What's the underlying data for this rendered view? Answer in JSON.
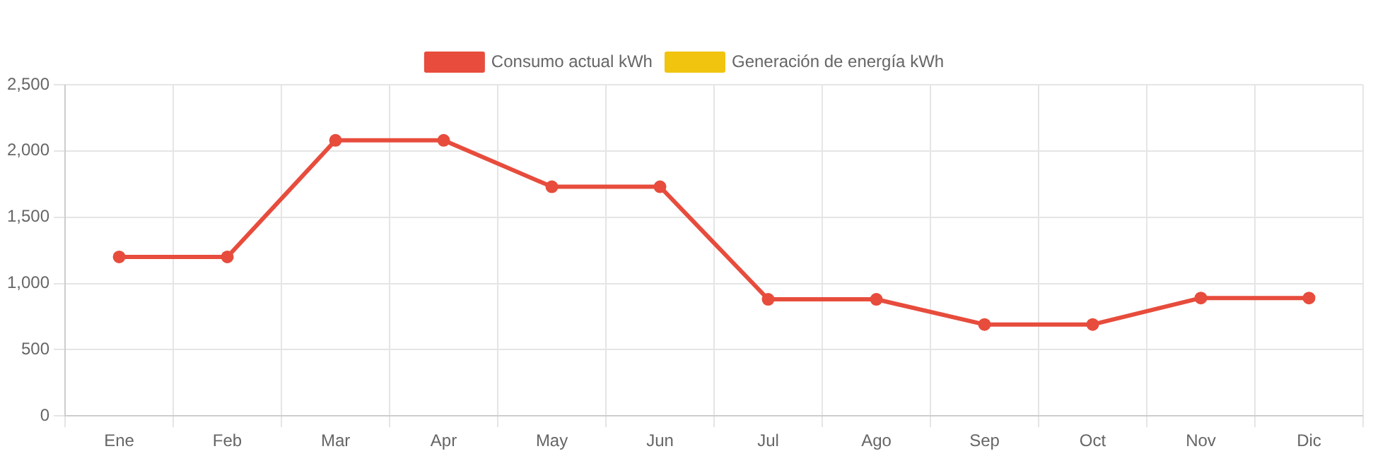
{
  "chart_data": {
    "type": "line",
    "categories": [
      "Ene",
      "Feb",
      "Mar",
      "Apr",
      "May",
      "Jun",
      "Jul",
      "Ago",
      "Sep",
      "Oct",
      "Nov",
      "Dic"
    ],
    "series": [
      {
        "name": "Consumo actual kWh",
        "color": "#e74c3c",
        "values": [
          1200,
          1200,
          2080,
          2080,
          1730,
          1730,
          880,
          880,
          690,
          690,
          890,
          890
        ]
      },
      {
        "name": "Generación de energía kWh",
        "color": "#f1c40f",
        "values": [
          null,
          null,
          null,
          null,
          null,
          null,
          null,
          null,
          null,
          null,
          null,
          null
        ]
      }
    ],
    "ylim": [
      0,
      2500
    ],
    "yticks": [
      {
        "value": 0,
        "label": "0"
      },
      {
        "value": 500,
        "label": "500"
      },
      {
        "value": 1000,
        "label": "1,000"
      },
      {
        "value": 1500,
        "label": "1,500"
      },
      {
        "value": 2000,
        "label": "2,000"
      },
      {
        "value": 2500,
        "label": "2,500"
      }
    ],
    "grid": true,
    "legend": "top",
    "marker": "circle"
  }
}
